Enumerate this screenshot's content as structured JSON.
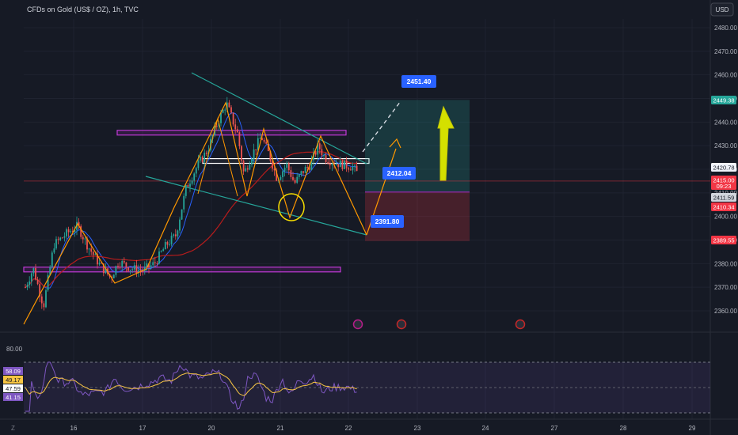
{
  "header": {
    "symbol": "CFDs on Gold (US$ / OZ), 1h, TVC",
    "currency": "USD"
  },
  "chart_data": {
    "type": "candlestick",
    "title": "CFDs on Gold (US$ / OZ), 1h, TVC",
    "y_axis": {
      "ticks": [
        2360,
        2370,
        2380,
        2390,
        2400,
        2410,
        2420,
        2430,
        2440,
        2450,
        2460,
        2470,
        2480
      ],
      "tick_labels": [
        "2360.00",
        "2370.00",
        "2380.00",
        "2390.00",
        "2400.00",
        "2410.00",
        "2420.00",
        "2430.00",
        "2440.00",
        "2450.00",
        "2460.00",
        "2470.00",
        "2480.00"
      ],
      "range": [
        2355,
        2485
      ]
    },
    "x_axis": {
      "ticks": [
        16,
        17,
        20,
        21,
        22,
        23,
        24,
        27,
        28,
        29
      ],
      "tick_labels": [
        "16",
        "17",
        "20",
        "21",
        "22",
        "23",
        "24",
        "27",
        "28",
        "29"
      ]
    },
    "price_tags": [
      {
        "value": 2449.38,
        "text": "2449.38",
        "color": "#26a69a"
      },
      {
        "value": 2420.78,
        "text": "2420.78",
        "color": "#f0f3fa"
      },
      {
        "value": 2415.0,
        "text": "2415.00",
        "sub": "09:23",
        "color": "#f23645"
      },
      {
        "value": 2411.59,
        "text": "2411.59",
        "color": "#d1d4dc"
      },
      {
        "value": 2410.34,
        "text": "2410.34",
        "color": "#f23645"
      },
      {
        "value": 2389.55,
        "text": "2389.55",
        "color": "#f23645"
      }
    ],
    "annotations": [
      {
        "text": "2451.40",
        "value": 2451.4
      },
      {
        "text": "2412.04",
        "value": 2412.04
      },
      {
        "text": "2391.80",
        "value": 2391.8
      }
    ],
    "position": {
      "entry": 2410.34,
      "target": 2449.38,
      "stop": 2389.55
    },
    "support_resistance_zones": [
      {
        "from": 2434.5,
        "to": 2436.5
      },
      {
        "from": 2422.5,
        "to": 2424.5
      },
      {
        "from": 2376.5,
        "to": 2378.5
      }
    ],
    "rsi": {
      "top_label": "80.00",
      "values": [
        "58.09",
        "49.17",
        "47.59",
        "41.15"
      ],
      "colors": [
        "#7e57c2",
        "#f7c543",
        "#ffffff",
        "#7e57c2"
      ]
    }
  }
}
